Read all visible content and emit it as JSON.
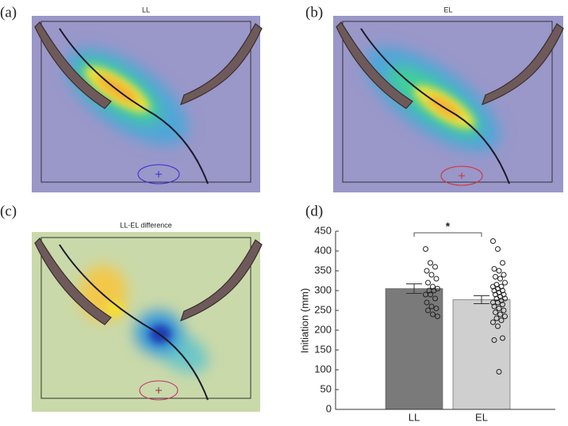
{
  "panels": [
    {
      "label": "(a)",
      "title": "LL"
    },
    {
      "label": "(b)",
      "title": "EL"
    },
    {
      "label": "(c)",
      "title": "LL-EL difference"
    }
  ],
  "chart_data": {
    "type": "bar",
    "label": "(d)",
    "y_label": "Initiation (mm)",
    "categories": [
      "LL",
      "EL"
    ],
    "values": [
      305,
      277
    ],
    "errors": [
      12,
      10
    ],
    "colors": [
      "#7a7a7a",
      "#cfcfcf"
    ],
    "points": [
      [
        405,
        370,
        360,
        350,
        340,
        330,
        320,
        310,
        305,
        300,
        300,
        290,
        290,
        280,
        270,
        260,
        255,
        250,
        240,
        235
      ],
      [
        425,
        405,
        370,
        355,
        350,
        340,
        335,
        330,
        320,
        315,
        310,
        310,
        305,
        300,
        300,
        295,
        290,
        290,
        285,
        280,
        280,
        275,
        270,
        270,
        265,
        260,
        255,
        250,
        245,
        240,
        235,
        230,
        225,
        220,
        210,
        180,
        175,
        95
      ]
    ],
    "significance": "*",
    "ylim": [
      0,
      450
    ],
    "yticks": [
      0,
      50,
      100,
      150,
      200,
      250,
      300,
      350,
      400,
      450
    ]
  }
}
